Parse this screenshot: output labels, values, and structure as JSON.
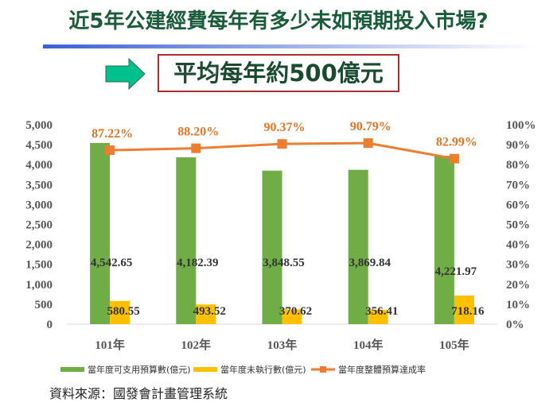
{
  "title": "近5年公建經費每年有多少未如預期投入市場?",
  "callout": "平均每年約500億元",
  "source": "資料來源：國發會計畫管理系統",
  "colors": {
    "green": "#70ad47",
    "yellow": "#ffc000",
    "orange": "#ed7d31",
    "title": "#1a5c3a",
    "arrow": "#00c08b"
  },
  "icons": {
    "arrow": "right-arrow-icon"
  },
  "chart_data": {
    "type": "bar+line",
    "categories": [
      "101年",
      "102年",
      "103年",
      "104年",
      "105年"
    ],
    "series": [
      {
        "name": "當年度可支用預算數(億元)",
        "type": "bar",
        "axis": "left",
        "values": [
          4542.65,
          4182.39,
          3848.55,
          3869.84,
          4221.97
        ],
        "labels": [
          "4,542.65",
          "4,182.39",
          "3,848.55",
          "3,869.84",
          "4,221.97"
        ]
      },
      {
        "name": "當年度未執行數(億元)",
        "type": "bar",
        "axis": "left",
        "values": [
          580.55,
          493.52,
          370.62,
          356.41,
          718.16
        ],
        "labels": [
          "580.55",
          "493.52",
          "370.62",
          "356.41",
          "718.16"
        ]
      },
      {
        "name": "當年度整體預算達成率",
        "type": "line",
        "axis": "right",
        "values": [
          87.22,
          88.2,
          90.37,
          90.79,
          82.99
        ],
        "labels": [
          "87.22%",
          "88.20%",
          "90.37%",
          "90.79%",
          "82.99%"
        ]
      }
    ],
    "left_axis": {
      "range": [
        0,
        5000
      ],
      "ticks": [
        "0",
        "500",
        "1,000",
        "1,500",
        "2,000",
        "2,500",
        "3,000",
        "3,500",
        "4,000",
        "4,500",
        "5,000"
      ]
    },
    "right_axis": {
      "range": [
        0,
        100
      ],
      "ticks": [
        "0%",
        "10%",
        "20%",
        "30%",
        "40%",
        "50%",
        "60%",
        "70%",
        "80%",
        "90%",
        "100%"
      ]
    },
    "grid": false,
    "legend": "bottom"
  }
}
